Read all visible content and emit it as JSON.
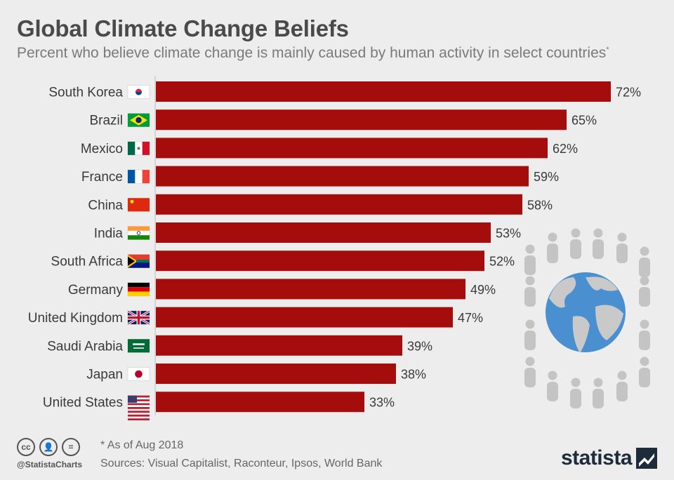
{
  "title": "Global Climate Change Beliefs",
  "subtitle": "Percent who believe climate change is mainly caused by human activity in select countries",
  "subtitle_mark": "*",
  "chart_data": {
    "type": "bar",
    "orientation": "horizontal",
    "categories": [
      "South Korea",
      "Brazil",
      "Mexico",
      "France",
      "China",
      "India",
      "South Africa",
      "Germany",
      "United Kingdom",
      "Saudi Arabia",
      "Japan",
      "United States"
    ],
    "values": [
      72,
      65,
      62,
      59,
      58,
      53,
      52,
      49,
      47,
      39,
      38,
      33
    ],
    "value_labels": [
      "72%",
      "65%",
      "62%",
      "59%",
      "58%",
      "53%",
      "52%",
      "49%",
      "47%",
      "39%",
      "38%",
      "33%"
    ],
    "flags": [
      "south-korea-flag-icon",
      "brazil-flag-icon",
      "mexico-flag-icon",
      "france-flag-icon",
      "china-flag-icon",
      "india-flag-icon",
      "south-africa-flag-icon",
      "germany-flag-icon",
      "united-kingdom-flag-icon",
      "saudi-arabia-flag-icon",
      "japan-flag-icon",
      "united-states-flag-icon"
    ],
    "bar_color": "#a50d0d",
    "xlim": [
      0,
      72
    ],
    "grid": false
  },
  "footer": {
    "note": "* As of Aug 2018",
    "sources": "Sources: Visual Capitalist, Raconteur, Ipsos, World Bank",
    "handle": "@StatistaCharts",
    "brand": "statista"
  },
  "colors": {
    "background": "#ededed",
    "bar": "#a50d0d",
    "globe_water": "#4a90d0",
    "people": "#c4c4c4"
  }
}
